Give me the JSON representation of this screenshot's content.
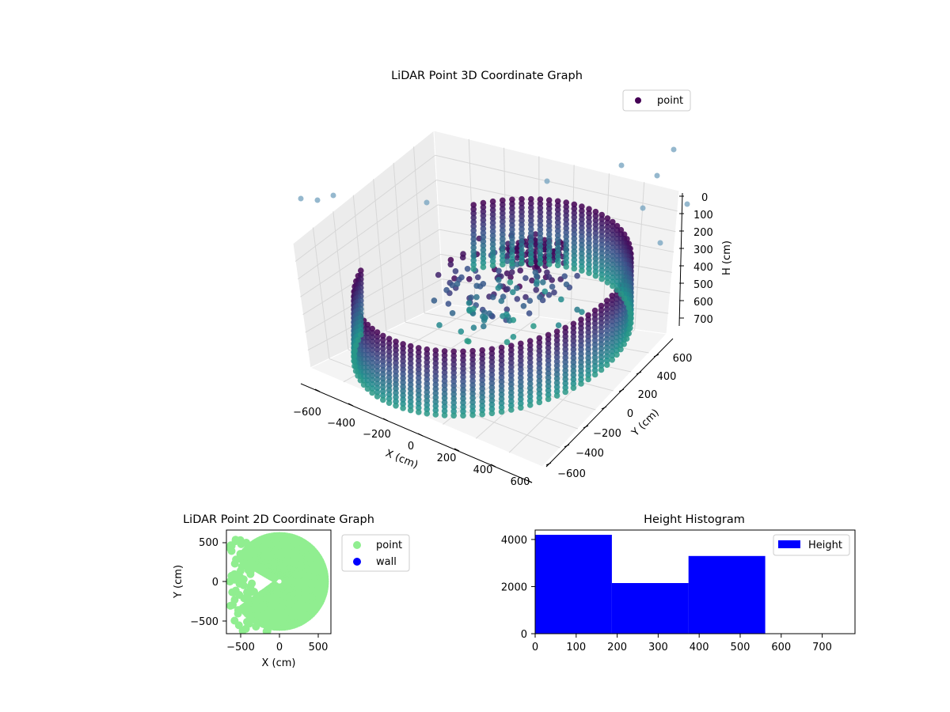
{
  "chart_data": [
    {
      "type": "scatter",
      "projection": "3d",
      "title": "LiDAR Point 3D Coordinate Graph",
      "xlabel": "X (cm)",
      "ylabel": "Y (cm)",
      "zlabel": "H (cm)",
      "xlim": [
        -700,
        700
      ],
      "ylim": [
        -700,
        700
      ],
      "zlim": [
        0,
        780
      ],
      "z_inverted": true,
      "x_ticks": [
        "−600",
        "−400",
        "−200",
        "0",
        "200",
        "400",
        "600"
      ],
      "y_ticks": [
        "−600",
        "−400",
        "−200",
        "0",
        "200",
        "400",
        "600"
      ],
      "z_ticks": [
        "0",
        "100",
        "200",
        "300",
        "400",
        "500",
        "600",
        "700"
      ],
      "grid": true,
      "legend": {
        "placement": "upper right",
        "entries": [
          "point"
        ]
      },
      "colormap": [
        "#440154",
        "#3b528b",
        "#21908d",
        "#5dc963"
      ],
      "legend_color": "#440154",
      "series": [
        {
          "name": "point",
          "description": "ring-shaped wall surface around origin, radius ~600 cm, heights 0–560 cm, plus sparse interior and outlier points"
        }
      ]
    },
    {
      "type": "scatter",
      "title": "LiDAR Point 2D Coordinate Graph",
      "xlabel": "X (cm)",
      "ylabel": "Y (cm)",
      "xlim": [
        -680,
        680
      ],
      "ylim": [
        -680,
        680
      ],
      "x_ticks": [
        "−500",
        "0",
        "500"
      ],
      "y_ticks": [
        "−500",
        "0",
        "500"
      ],
      "legend": {
        "placement": "outside right",
        "entries": [
          "point",
          "wall"
        ]
      },
      "series": [
        {
          "name": "point",
          "color": "#90ee90"
        },
        {
          "name": "wall",
          "color": "#0000ff"
        }
      ]
    },
    {
      "type": "bar",
      "title": "Height Histogram",
      "xlabel": "",
      "ylabel": "",
      "xlim": [
        0,
        780
      ],
      "ylim": [
        0,
        4400
      ],
      "x_ticks": [
        "0",
        "100",
        "200",
        "300",
        "400",
        "500",
        "600",
        "700"
      ],
      "y_ticks": [
        "0",
        "2000",
        "4000"
      ],
      "legend": {
        "placement": "upper right",
        "entries": [
          "Height"
        ]
      },
      "bins": [
        {
          "x0": 0,
          "x1": 187,
          "value": 4200
        },
        {
          "x0": 187,
          "x1": 374,
          "value": 2150
        },
        {
          "x0": 374,
          "x1": 561,
          "value": 3300
        },
        {
          "x0": 561,
          "x1": 748,
          "value": 0
        }
      ],
      "series": [
        {
          "name": "Height",
          "color": "#0000ff"
        }
      ]
    }
  ]
}
